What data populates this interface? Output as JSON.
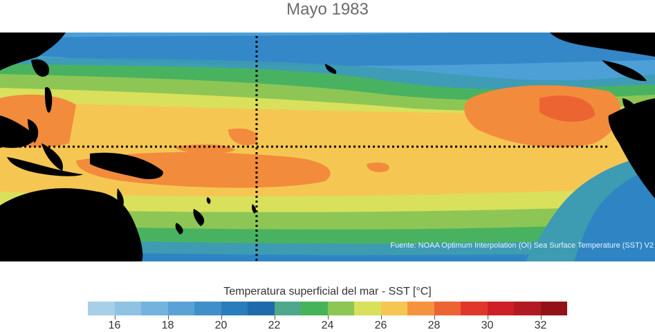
{
  "title": "Mayo 1983",
  "source_note": "Fuente: NOAA Optimum Interpolation (OI) Sea Surface Temperature (SST) V2",
  "legend": {
    "title": "Temperatura superficial del mar - SST  [°C]",
    "min": 15,
    "max": 33,
    "tick_values": [
      16,
      18,
      20,
      22,
      24,
      26,
      28,
      30,
      32
    ],
    "tick_labels": [
      "16",
      "18",
      "20",
      "22",
      "24",
      "26",
      "28",
      "30",
      "32"
    ],
    "colors": [
      "#a8cfe8",
      "#8fc2e3",
      "#74b3dd",
      "#5aa2d5",
      "#3f8fcb",
      "#2a7dbd",
      "#1f6aaa",
      "#4fa88c",
      "#46b35a",
      "#8cc653",
      "#d8e05c",
      "#f6c653",
      "#f5923d",
      "#ec6432",
      "#e1372a",
      "#cf1f25",
      "#b11a22",
      "#931117"
    ]
  },
  "map": {
    "land_color": "#000000",
    "reference_lines": [
      "equator",
      "dateline"
    ],
    "reference_line_style": "dotted",
    "warm_pool_color": "#f28b3c",
    "background_ocean_color": "#f6c653"
  }
}
